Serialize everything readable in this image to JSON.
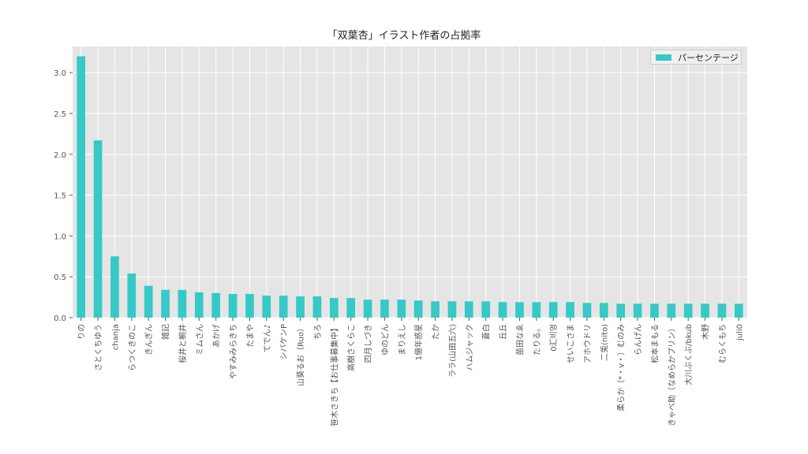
{
  "chart_data": {
    "type": "bar",
    "title": "「双葉杏」イラスト作者の占拠率",
    "xlabel": "",
    "ylabel": "",
    "ylim": [
      0,
      3.32
    ],
    "yticks": [
      "0.0",
      "0.5",
      "1.0",
      "1.5",
      "2.0",
      "2.5",
      "3.0"
    ],
    "grid": true,
    "legend_position": "top-right",
    "color": "#36c9c6",
    "categories": [
      "りの",
      "さとくちゆう",
      "chanja",
      "らつくきのこ",
      "きんぎん",
      "雑記",
      "桜井と桐井",
      "ミムさん",
      "あかげ",
      "やすみみらきち",
      "たまや",
      "てでん♪",
      "シバケンP",
      "山葵るお（Ruo）",
      "ちろ",
      "笹木さきち【お仕事募集中】",
      "高樹さくらこ",
      "四月しづき",
      "ゆのどん",
      "まりえし",
      "1億年惑星",
      "たか",
      "ララ(山田五六)",
      "ハムジャック",
      "蒼白",
      "丘丘",
      "苗田なゑ",
      "たりる。",
      "0汇비영",
      "せいこさま",
      "アホウドリ",
      "二兎(nito)",
      "柔らか（*・v・）むのみ",
      "らんげん",
      "松本まもる",
      "きゃべ助（なめらかプリン）",
      "大川ぶくぶ/bkub",
      "木野",
      "むらくもち",
      "juli0"
    ],
    "series": [
      {
        "name": "パーセンテージ",
        "values": [
          3.2,
          2.17,
          0.75,
          0.54,
          0.39,
          0.34,
          0.34,
          0.31,
          0.3,
          0.29,
          0.29,
          0.27,
          0.27,
          0.26,
          0.26,
          0.24,
          0.24,
          0.22,
          0.22,
          0.22,
          0.21,
          0.2,
          0.2,
          0.2,
          0.2,
          0.19,
          0.19,
          0.19,
          0.19,
          0.19,
          0.18,
          0.18,
          0.17,
          0.17,
          0.17,
          0.17,
          0.17,
          0.17,
          0.17,
          0.17
        ]
      }
    ]
  }
}
